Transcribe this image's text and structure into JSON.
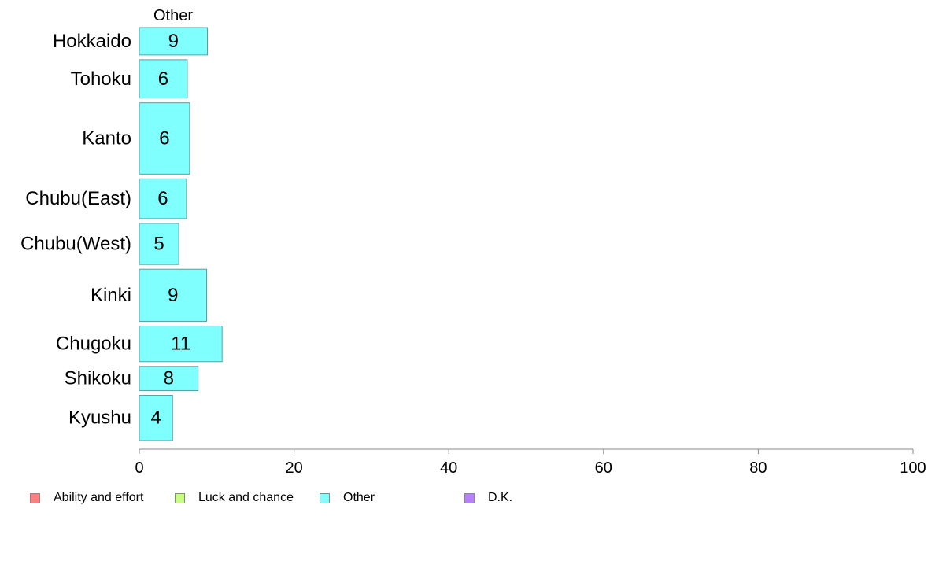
{
  "chart_data": {
    "type": "bar",
    "orientation": "horizontal",
    "series_header": "Other",
    "categories": [
      "Hokkaido",
      "Tohoku",
      "Kanto",
      "Chubu(East)",
      "Chubu(West)",
      "Kinki",
      "Chugoku",
      "Shikoku",
      "Kyushu"
    ],
    "series": [
      {
        "name": "Other",
        "color": "#80ffff",
        "values": [
          8.8,
          6.2,
          6.5,
          6.1,
          5.1,
          8.7,
          10.7,
          7.6,
          4.3
        ],
        "labels": [
          "9",
          "6",
          "6",
          "6",
          "5",
          "9",
          "11",
          "8",
          "4"
        ]
      }
    ],
    "xlim": [
      0,
      100
    ],
    "xticks": [
      "0",
      "20",
      "40",
      "60",
      "80",
      "100"
    ],
    "bar_thickness_relative": [
      1.0,
      1.4,
      2.6,
      1.45,
      1.5,
      1.9,
      1.3,
      0.88,
      1.65
    ],
    "legend_position": "bottom-left",
    "grid": false
  },
  "legend": [
    {
      "label": "Ability and effort",
      "color": "#ff8080"
    },
    {
      "label": "Luck and chance",
      "color": "#c8ff80"
    },
    {
      "label": "Other",
      "color": "#80ffff"
    },
    {
      "label": "D.K.",
      "color": "#b880ff"
    }
  ]
}
